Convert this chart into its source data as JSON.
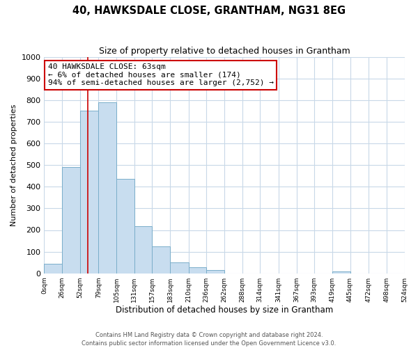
{
  "title": "40, HAWKSDALE CLOSE, GRANTHAM, NG31 8EG",
  "subtitle": "Size of property relative to detached houses in Grantham",
  "xlabel": "Distribution of detached houses by size in Grantham",
  "ylabel": "Number of detached properties",
  "bar_color": "#c8ddef",
  "bar_edge_color": "#7aaeca",
  "background_color": "#ffffff",
  "grid_color": "#c8d8e8",
  "annotation_box_color": "#cc0000",
  "annotation_line1": "40 HAWKSDALE CLOSE: 63sqm",
  "annotation_line2": "← 6% of detached houses are smaller (174)",
  "annotation_line3": "94% of semi-detached houses are larger (2,752) →",
  "property_line_x": 63,
  "footer_line1": "Contains HM Land Registry data © Crown copyright and database right 2024.",
  "footer_line2": "Contains public sector information licensed under the Open Government Licence v3.0.",
  "bin_edges": [
    0,
    26,
    52,
    79,
    105,
    131,
    157,
    183,
    210,
    236,
    262,
    288,
    314,
    341,
    367,
    393,
    419,
    445,
    472,
    498,
    524
  ],
  "bin_labels": [
    "0sqm",
    "26sqm",
    "52sqm",
    "79sqm",
    "105sqm",
    "131sqm",
    "157sqm",
    "183sqm",
    "210sqm",
    "236sqm",
    "262sqm",
    "288sqm",
    "314sqm",
    "341sqm",
    "367sqm",
    "393sqm",
    "419sqm",
    "445sqm",
    "472sqm",
    "498sqm",
    "524sqm"
  ],
  "counts": [
    45,
    490,
    750,
    790,
    435,
    218,
    126,
    52,
    27,
    15,
    0,
    0,
    0,
    0,
    0,
    0,
    8,
    0,
    0,
    0
  ],
  "ylim": [
    0,
    1000
  ],
  "yticks": [
    0,
    100,
    200,
    300,
    400,
    500,
    600,
    700,
    800,
    900,
    1000
  ]
}
